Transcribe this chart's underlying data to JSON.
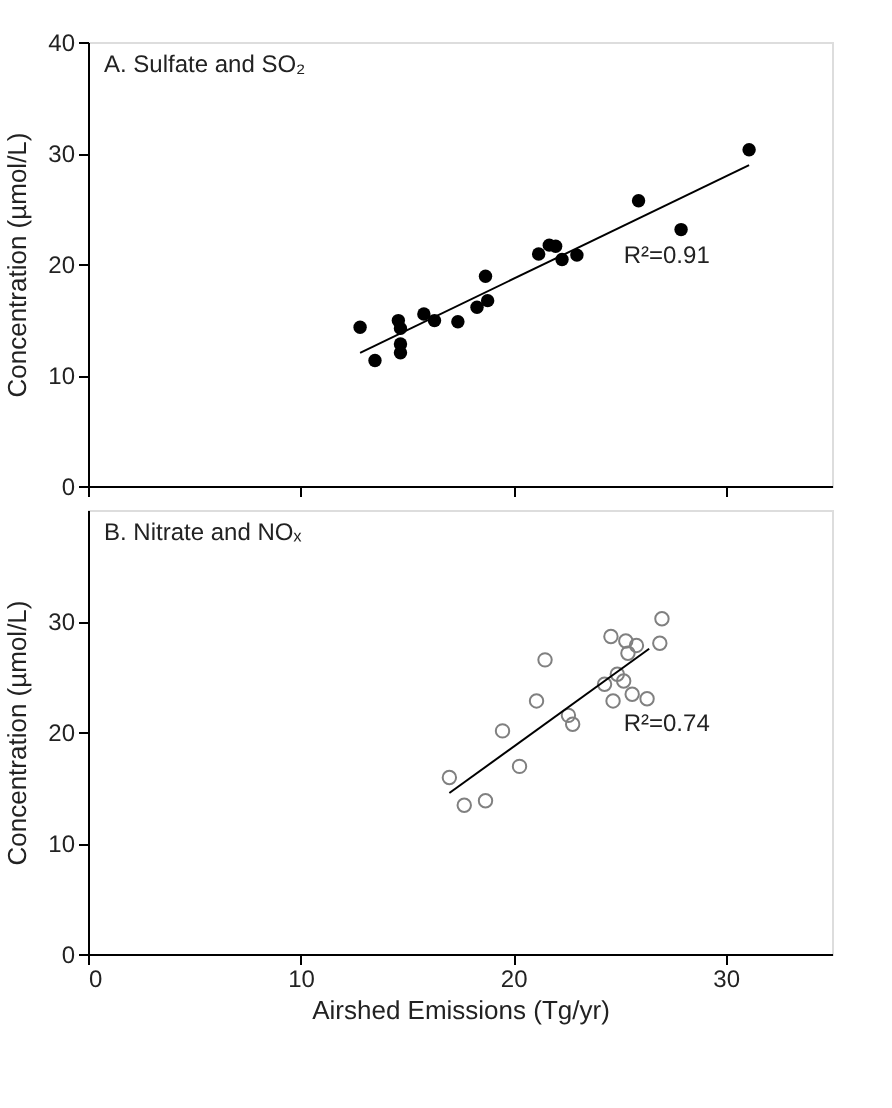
{
  "chart_data": [
    {
      "type": "scatter",
      "title": "A. Sulfate and SO₂",
      "ylabel": "Concentration (µmol/L)",
      "xlim": [
        0,
        35
      ],
      "xticks": [
        0,
        10,
        20,
        30
      ],
      "ylim": [
        0,
        40
      ],
      "yticks": [
        0,
        10,
        20,
        30,
        40
      ],
      "tick_labels": "y",
      "grid": false,
      "marker": "circle",
      "annotations": [
        "R²=0.91"
      ],
      "series": [
        {
          "color": "#000000",
          "x": [
            12.8,
            13.5,
            14.6,
            14.7,
            14.7,
            14.7,
            15.8,
            16.3,
            17.4,
            18.3,
            18.8,
            18.7,
            21.2,
            21.7,
            22.0,
            22.3,
            23.0,
            25.9,
            27.9,
            31.1
          ],
          "values": [
            14.3,
            11.3,
            14.9,
            14.2,
            12.8,
            12.0,
            15.5,
            14.9,
            14.8,
            16.1,
            16.7,
            18.9,
            20.9,
            21.7,
            21.6,
            20.4,
            20.8,
            25.7,
            23.1,
            30.3
          ]
        },
        {
          "type": "line",
          "marker": "none",
          "line_style": "solid",
          "color": "#000000",
          "x": [
            12.8,
            31.1
          ],
          "values": [
            12.0,
            28.9
          ]
        }
      ]
    },
    {
      "type": "scatter",
      "title": "B. Nitrate and NOₓ",
      "xlabel": "Airshed Emissions (Tg/yr)",
      "ylabel": "Concentration (µmol/L)",
      "xlim": [
        0,
        35
      ],
      "xticks": [
        0,
        10,
        20,
        30
      ],
      "ylim": [
        0,
        40
      ],
      "yticks": [
        0,
        10,
        20,
        30
      ],
      "grid": false,
      "marker": "circle",
      "annotations": [
        "R²=0.74"
      ],
      "series": [
        {
          "color": "#808080",
          "x": [
            17.0,
            17.7,
            18.7,
            19.5,
            20.3,
            21.1,
            21.5,
            22.6,
            22.8,
            24.3,
            24.6,
            24.9,
            25.2,
            24.7,
            25.3,
            25.4,
            25.8,
            25.6,
            26.3,
            26.9,
            27.0
          ],
          "values": [
            15.9,
            13.4,
            13.8,
            20.1,
            16.9,
            22.8,
            26.5,
            21.5,
            20.7,
            24.3,
            28.6,
            25.2,
            24.6,
            22.8,
            28.2,
            27.1,
            27.8,
            23.4,
            23.0,
            28.0,
            30.2
          ]
        },
        {
          "type": "line",
          "marker": "none",
          "line_style": "solid",
          "color": "#000000",
          "x": [
            17.0,
            26.4
          ],
          "values": [
            14.5,
            27.5
          ]
        }
      ]
    }
  ]
}
